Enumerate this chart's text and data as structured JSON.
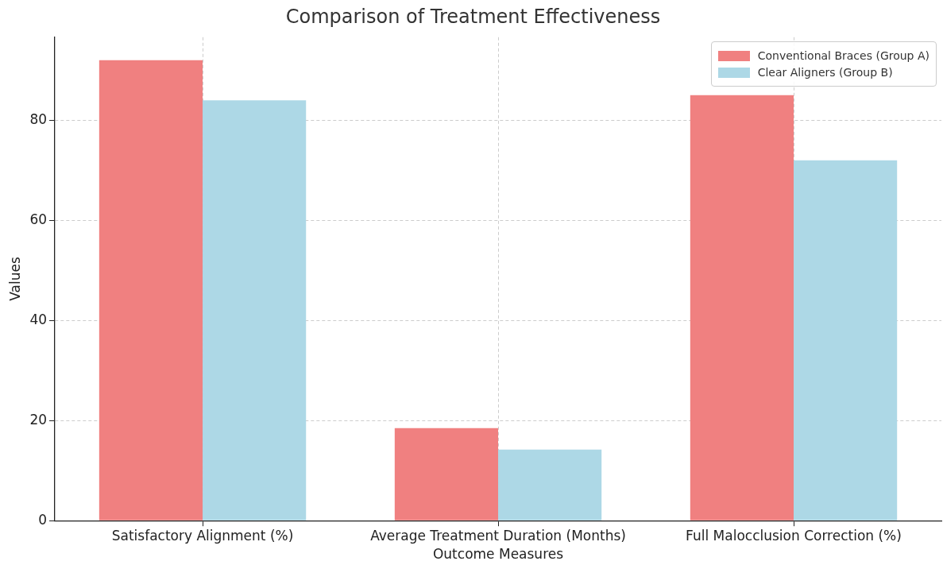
{
  "chart_data": {
    "type": "bar",
    "title": "Comparison of Treatment Effectiveness",
    "xlabel": "Outcome Measures",
    "ylabel": "Values",
    "categories": [
      "Satisfactory Alignment (%)",
      "Average Treatment Duration (Months)",
      "Full Malocclusion Correction (%)"
    ],
    "series": [
      {
        "name": "Conventional Braces (Group A)",
        "color": "#f08080",
        "values": [
          92,
          18.5,
          85
        ]
      },
      {
        "name": "Clear Aligners (Group B)",
        "color": "#add8e6",
        "values": [
          84,
          14.2,
          72
        ]
      }
    ],
    "ylim": [
      0,
      96.6
    ],
    "yticks": [
      0,
      20,
      40,
      60,
      80
    ],
    "grid": true,
    "legend": "top right"
  }
}
